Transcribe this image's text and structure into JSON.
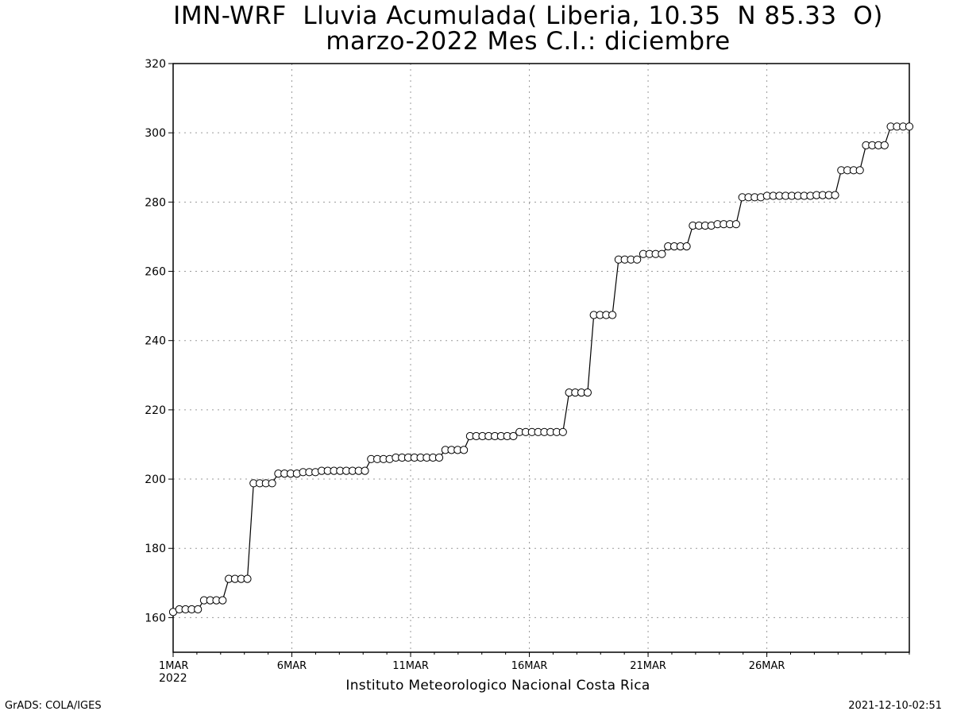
{
  "chart_data": {
    "type": "line",
    "title": "IMN-WRF  Lluvia Acumulada( Liberia, 10.35  N 85.33  O)",
    "subtitle": "marzo-2022 Mes C.I.: diciembre",
    "ylim": [
      150,
      320
    ],
    "yticks": [
      160,
      180,
      200,
      220,
      240,
      260,
      280,
      300,
      320
    ],
    "xlim_days": [
      1,
      31
    ],
    "xticks": [
      {
        "day": 1,
        "label": "1MAR",
        "sublabel": "2022"
      },
      {
        "day": 6,
        "label": "6MAR"
      },
      {
        "day": 11,
        "label": "11MAR"
      },
      {
        "day": 16,
        "label": "16MAR"
      },
      {
        "day": 21,
        "label": "21MAR"
      },
      {
        "day": 26,
        "label": "26MAR"
      }
    ],
    "grid": true,
    "marker": "open-circle",
    "series": [
      {
        "values": [
          161.6,
          162.4,
          162.4,
          162.4,
          162.4,
          165.0,
          165.0,
          165.0,
          165.0,
          171.2,
          171.2,
          171.2,
          171.2,
          198.8,
          198.8,
          198.8,
          198.8,
          201.6,
          201.6,
          201.6,
          201.6,
          202.0,
          202.0,
          202.0,
          202.4,
          202.4,
          202.4,
          202.4,
          202.4,
          202.4,
          202.4,
          202.4,
          205.8,
          205.8,
          205.8,
          205.8,
          206.2,
          206.2,
          206.2,
          206.2,
          206.2,
          206.2,
          206.2,
          206.2,
          208.4,
          208.4,
          208.4,
          208.4,
          212.4,
          212.4,
          212.4,
          212.4,
          212.4,
          212.4,
          212.4,
          212.4,
          213.6,
          213.6,
          213.6,
          213.6,
          213.6,
          213.6,
          213.6,
          213.6,
          225.0,
          225.0,
          225.0,
          225.0,
          247.4,
          247.4,
          247.4,
          247.4,
          263.4,
          263.4,
          263.4,
          263.4,
          265.0,
          265.0,
          265.0,
          265.0,
          267.2,
          267.2,
          267.2,
          267.2,
          273.2,
          273.2,
          273.2,
          273.2,
          273.6,
          273.6,
          273.6,
          273.6,
          281.4,
          281.4,
          281.4,
          281.4,
          281.8,
          281.8,
          281.8,
          281.8,
          281.8,
          281.8,
          281.8,
          281.8,
          282.0,
          282.0,
          282.0,
          282.0,
          289.2,
          289.2,
          289.2,
          289.2,
          296.4,
          296.4,
          296.4,
          296.4,
          301.8,
          301.8,
          301.8,
          301.8
        ]
      }
    ],
    "xlabel": "Instituto Meteorologico Nacional Costa Rica"
  },
  "footer": {
    "left": "GrADS: COLA/IGES",
    "right": "2021-12-10-02:51"
  }
}
